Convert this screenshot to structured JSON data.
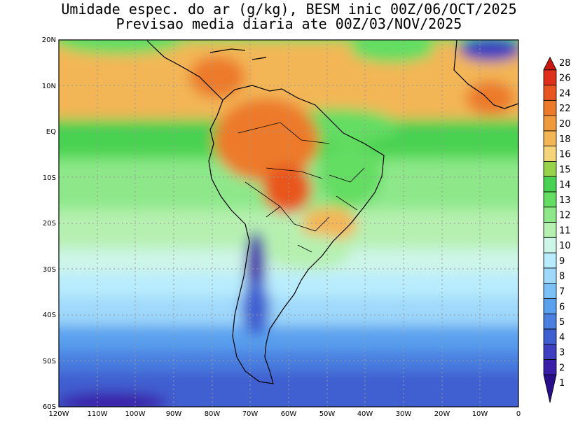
{
  "title": {
    "line1": "Umidade espec. do ar (g/kg), BESM inic 00Z/06/OCT/2025",
    "line2": "Previsao media diaria ate 00Z/03/NOV/2025"
  },
  "axes": {
    "lat_labels": [
      "20N",
      "10N",
      "EQ",
      "10S",
      "20S",
      "30S",
      "40S",
      "50S",
      "60S"
    ],
    "lon_labels": [
      "120W",
      "110W",
      "100W",
      "90W",
      "80W",
      "70W",
      "60W",
      "50W",
      "40W",
      "30W",
      "20W",
      "10W",
      "0"
    ]
  },
  "colorbar": {
    "labels": [
      "1",
      "2",
      "3",
      "4",
      "5",
      "6",
      "7",
      "8",
      "9",
      "10",
      "11",
      "12",
      "13",
      "14",
      "15",
      "16",
      "18",
      "20",
      "22",
      "24",
      "26",
      "28"
    ],
    "colors": [
      "#2a0f8a",
      "#3a1fa8",
      "#3d3fc0",
      "#3f5fd0",
      "#4a7fe0",
      "#5aa0ee",
      "#7cc0f8",
      "#9ed8fb",
      "#b8ecfd",
      "#cdf5e8",
      "#b6f0b0",
      "#8ee88a",
      "#63dd62",
      "#49d151",
      "#97d24a",
      "#f5d47a",
      "#f3b657",
      "#f09a3c",
      "#ec7a2a",
      "#e8561f",
      "#dd2f19",
      "#c8180f"
    ]
  }
}
